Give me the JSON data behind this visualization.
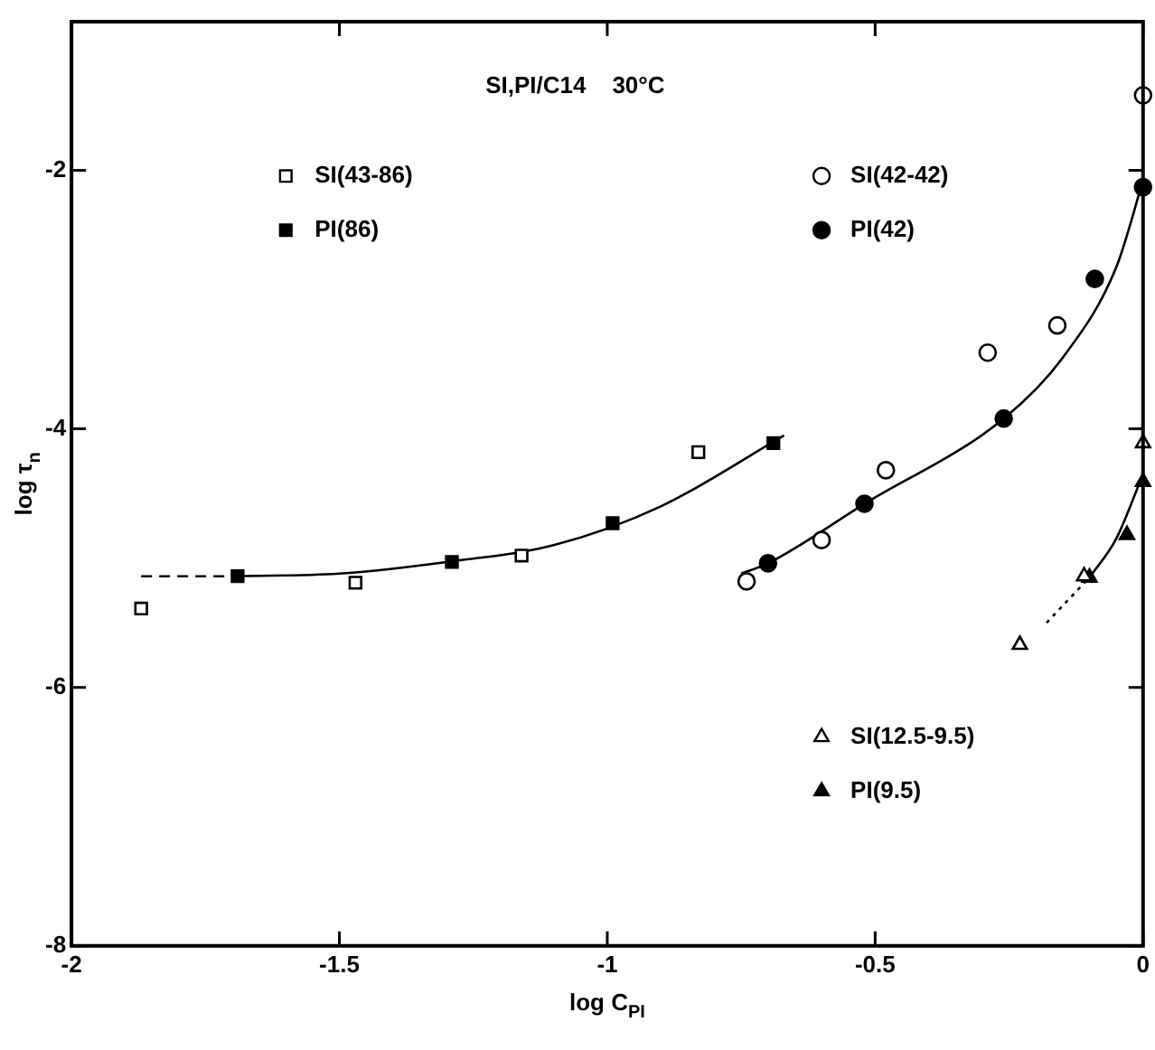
{
  "chart_data": {
    "type": "scatter",
    "title": "SI,PI/C14    30°C",
    "xlabel": "log C$_{PI}$",
    "ylabel": "log τ$_{n}$",
    "xlim": [
      -2,
      0
    ],
    "xticks": [
      -2,
      -1.5,
      -1,
      -0.5,
      0
    ],
    "ylim": [
      -8,
      -0.85
    ],
    "yticks": [
      -8,
      -6,
      -4,
      -2
    ],
    "grid": false,
    "legend": "bottom right",
    "series": [
      {
        "name": "SI(43-86)",
        "marker": "square",
        "color": "#ffffff",
        "x": [
          -1.87,
          -1.47,
          -1.16,
          -0.83
        ],
        "values": [
          -5.39,
          -5.19,
          -4.98,
          -4.18
        ]
      },
      {
        "name": "PI(86)",
        "marker": "square",
        "color": "#000000",
        "x": [
          -1.69,
          -1.29,
          -0.99,
          -0.69
        ],
        "values": [
          -5.14,
          -5.03,
          -4.73,
          -4.11
        ]
      },
      {
        "name": "SI(42-42)",
        "marker": "circle",
        "color": "#ffffff",
        "x": [
          -0.74,
          -0.6,
          -0.48,
          -0.29,
          -0.16,
          0
        ],
        "values": [
          -5.18,
          -4.86,
          -4.32,
          -3.41,
          -3.2,
          -1.42
        ]
      },
      {
        "name": "PI(42)",
        "marker": "circle",
        "color": "#000000",
        "x": [
          -0.7,
          -0.52,
          -0.26,
          -0.09,
          0
        ],
        "values": [
          -5.04,
          -4.58,
          -3.92,
          -2.84,
          -2.13
        ]
      },
      {
        "name": "SI(12.5-9.5)",
        "marker": "triangle",
        "color": "#ffffff",
        "x": [
          -0.23,
          -0.11,
          0
        ],
        "values": [
          -5.67,
          -5.14,
          -4.11
        ]
      },
      {
        "name": "PI(9.5)",
        "marker": "triangle",
        "color": "#000000",
        "x": [
          -0.1,
          -0.03,
          0
        ],
        "values": [
          -5.15,
          -4.82,
          -4.41
        ]
      },
      {
        "type": "line",
        "marker": "none",
        "line_style": "dashed",
        "color": "#000000",
        "x": [
          -1.87,
          -1.69
        ],
        "values": [
          -5.14,
          -5.14
        ]
      },
      {
        "type": "line",
        "marker": "none",
        "line_style": "solid",
        "color": "#000000",
        "x": [
          -1.69,
          -1.5,
          -1.3,
          -1.1,
          -0.9,
          -0.67
        ],
        "values": [
          -5.14,
          -5.12,
          -5.03,
          -4.9,
          -4.6,
          -4.05
        ]
      },
      {
        "type": "line",
        "marker": "none",
        "line_style": "solid",
        "color": "#000000",
        "x": [
          -0.75,
          -0.7,
          -0.52,
          -0.26,
          -0.15,
          -0.05,
          0
        ],
        "values": [
          -5.12,
          -5.04,
          -4.58,
          -3.92,
          -3.45,
          -2.75,
          -2.08
        ]
      },
      {
        "type": "line",
        "marker": "none",
        "line_style": "dotted",
        "color": "#000000",
        "x": [
          -0.18,
          -0.1
        ],
        "values": [
          -5.5,
          -5.15
        ]
      },
      {
        "type": "line",
        "marker": "none",
        "line_style": "solid",
        "color": "#000000",
        "x": [
          -0.1,
          -0.05,
          0
        ],
        "values": [
          -5.15,
          -4.85,
          -4.35
        ]
      }
    ]
  }
}
